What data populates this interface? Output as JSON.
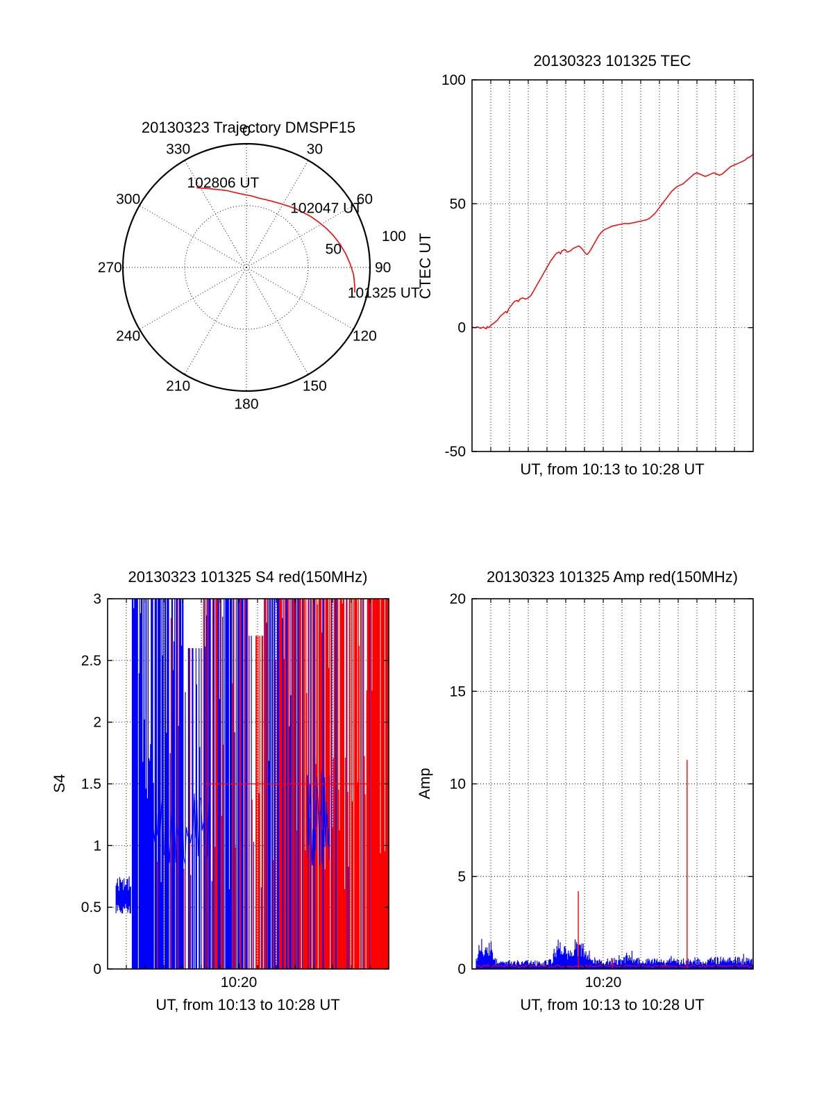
{
  "figure": {
    "background": "#ffffff",
    "colors": {
      "red": "#ff0000",
      "blue": "#0000ff",
      "axis": "#000000"
    }
  },
  "chart_data": [
    {
      "id": "trajectory",
      "type": "polar-trajectory",
      "title": "20130323 Trajectory DMSPF15",
      "max_radius": 100,
      "azimuth_ticks": [
        0,
        30,
        60,
        90,
        120,
        150,
        180,
        210,
        240,
        270,
        300,
        330
      ],
      "azimuth_tick_labels": [
        "0",
        "30",
        "60",
        "90",
        "120",
        "150",
        "180",
        "210",
        "240",
        "270",
        "300",
        "330"
      ],
      "radial_ticks": [
        {
          "value": 50,
          "label": "50"
        },
        {
          "value": 100,
          "label": "100"
        }
      ],
      "radial_label_azimuth_deg": 78,
      "grid": true,
      "trajectory_color": "#ff0000",
      "trajectory_points_az_r": [
        [
          328,
          76
        ],
        [
          334,
          71
        ],
        [
          340,
          67
        ],
        [
          346,
          64
        ],
        [
          352,
          61
        ],
        [
          358,
          59
        ],
        [
          4,
          58
        ],
        [
          10,
          57
        ],
        [
          16,
          57
        ],
        [
          22,
          57.5
        ],
        [
          28,
          58.5
        ],
        [
          34,
          60
        ],
        [
          40,
          62
        ],
        [
          46,
          64
        ],
        [
          52,
          66.5
        ],
        [
          58,
          69
        ],
        [
          64,
          72
        ],
        [
          70,
          75
        ],
        [
          76,
          78
        ],
        [
          82,
          81
        ],
        [
          88,
          84
        ],
        [
          94,
          87
        ],
        [
          100,
          89
        ],
        [
          103,
          90
        ]
      ],
      "annotations": [
        {
          "label": "102806 UT",
          "az": 344.6,
          "r": 71
        },
        {
          "label": "102047 UT",
          "az": 53.4,
          "r": 80.6
        },
        {
          "label": "101325 UT",
          "az": 100.5,
          "r": 113
        }
      ]
    },
    {
      "id": "tec",
      "type": "line",
      "title": "20130323 101325 TEC",
      "ylabel": "CTEC UT",
      "xlabel": "UT, from 10:13 to 10:28 UT",
      "x_range_ut": [
        "10:13",
        "10:28"
      ],
      "x_minutes": 15,
      "ylim": [
        -50,
        100
      ],
      "yticks": [
        {
          "value": -50,
          "label": "-50"
        },
        {
          "value": 0,
          "label": "0"
        },
        {
          "value": 50,
          "label": "50"
        },
        {
          "value": 100,
          "label": "100"
        }
      ],
      "xticks": [],
      "grid_y_values": [
        0,
        50
      ],
      "grid": true,
      "line_color": "#ff0000",
      "points_t_tec": [
        [
          0,
          0.2
        ],
        [
          0.01,
          0
        ],
        [
          0.02,
          0.3
        ],
        [
          0.03,
          -0.3
        ],
        [
          0.04,
          0.2
        ],
        [
          0.05,
          -0.5
        ],
        [
          0.055,
          0.4
        ],
        [
          0.06,
          0
        ],
        [
          0.07,
          1.2
        ],
        [
          0.08,
          2
        ],
        [
          0.09,
          3
        ],
        [
          0.1,
          4.5
        ],
        [
          0.11,
          5.5
        ],
        [
          0.12,
          6.5
        ],
        [
          0.125,
          6
        ],
        [
          0.13,
          7.5
        ],
        [
          0.14,
          9
        ],
        [
          0.15,
          10.5
        ],
        [
          0.16,
          11
        ],
        [
          0.165,
          10.5
        ],
        [
          0.17,
          11.5
        ],
        [
          0.18,
          12
        ],
        [
          0.19,
          11.5
        ],
        [
          0.2,
          12
        ],
        [
          0.21,
          13
        ],
        [
          0.22,
          15
        ],
        [
          0.23,
          17
        ],
        [
          0.24,
          19
        ],
        [
          0.25,
          21
        ],
        [
          0.26,
          23
        ],
        [
          0.27,
          25
        ],
        [
          0.28,
          27
        ],
        [
          0.29,
          28.5
        ],
        [
          0.3,
          30
        ],
        [
          0.31,
          30.5
        ],
        [
          0.315,
          29.8
        ],
        [
          0.32,
          31
        ],
        [
          0.33,
          31.5
        ],
        [
          0.34,
          30.5
        ],
        [
          0.35,
          31
        ],
        [
          0.36,
          32
        ],
        [
          0.37,
          32.5
        ],
        [
          0.38,
          33
        ],
        [
          0.39,
          32
        ],
        [
          0.4,
          30.5
        ],
        [
          0.405,
          29.8
        ],
        [
          0.41,
          29.5
        ],
        [
          0.42,
          31
        ],
        [
          0.43,
          33
        ],
        [
          0.44,
          35
        ],
        [
          0.45,
          37
        ],
        [
          0.46,
          38.5
        ],
        [
          0.47,
          39.5
        ],
        [
          0.48,
          40
        ],
        [
          0.49,
          40.5
        ],
        [
          0.5,
          41
        ],
        [
          0.52,
          41.5
        ],
        [
          0.54,
          42
        ],
        [
          0.56,
          42
        ],
        [
          0.58,
          42.5
        ],
        [
          0.6,
          43
        ],
        [
          0.62,
          43.5
        ],
        [
          0.63,
          44
        ],
        [
          0.64,
          45
        ],
        [
          0.65,
          46
        ],
        [
          0.66,
          47.5
        ],
        [
          0.67,
          49
        ],
        [
          0.68,
          50.5
        ],
        [
          0.69,
          52
        ],
        [
          0.7,
          53.5
        ],
        [
          0.71,
          55
        ],
        [
          0.72,
          56
        ],
        [
          0.73,
          57
        ],
        [
          0.74,
          57.5
        ],
        [
          0.75,
          58
        ],
        [
          0.76,
          59
        ],
        [
          0.77,
          60
        ],
        [
          0.78,
          61
        ],
        [
          0.79,
          62
        ],
        [
          0.8,
          62.5
        ],
        [
          0.81,
          62
        ],
        [
          0.82,
          61.5
        ],
        [
          0.83,
          61
        ],
        [
          0.84,
          61.5
        ],
        [
          0.85,
          62
        ],
        [
          0.86,
          62.5
        ],
        [
          0.87,
          62
        ],
        [
          0.88,
          61.5
        ],
        [
          0.89,
          62
        ],
        [
          0.9,
          63
        ],
        [
          0.91,
          64
        ],
        [
          0.92,
          65
        ],
        [
          0.93,
          65.5
        ],
        [
          0.94,
          66
        ],
        [
          0.95,
          66.5
        ],
        [
          0.96,
          67
        ],
        [
          0.97,
          67.5
        ],
        [
          0.98,
          68.5
        ],
        [
          0.99,
          69
        ],
        [
          1,
          70
        ]
      ]
    },
    {
      "id": "s4",
      "type": "scintillation",
      "title": "20130323 101325 S4 red(150MHz)",
      "ylabel": "S4",
      "xlabel": "UT, from 10:13 to 10:28 UT",
      "x_range_ut": [
        "10:13",
        "10:28"
      ],
      "x_minutes": 15,
      "ylim": [
        0,
        3
      ],
      "yticks": [
        {
          "value": 0,
          "label": "0"
        },
        {
          "value": 0.5,
          "label": "0.5"
        },
        {
          "value": 1,
          "label": "1"
        },
        {
          "value": 1.5,
          "label": "1.5"
        },
        {
          "value": 2,
          "label": "2"
        },
        {
          "value": 2.5,
          "label": "2.5"
        },
        {
          "value": 3,
          "label": "3"
        }
      ],
      "xticks": [
        {
          "t": 0.4667,
          "label": "10:20"
        }
      ],
      "grid_y_values": [
        0.5,
        1,
        1.5,
        2,
        2.5
      ],
      "grid": true,
      "colors": {
        "series1": "#0000ff",
        "series2": "#ff0000"
      },
      "note": "S4 values saturate at 3; dense vertical blue/red strokes regenerated pseudo-randomly",
      "intro_trace": {
        "t_range": [
          0.03,
          0.082
        ],
        "y_band": [
          0.45,
          0.75
        ]
      },
      "dense_region": {
        "t_range": [
          0.085,
          1.0
        ],
        "seed": 20130323,
        "line_count": 340,
        "full_height_prob": 0.55,
        "red_ramp": {
          "start_t": 0.13,
          "slope": 1.2,
          "min": 0.03,
          "max": 0.85
        },
        "gaps": [
          {
            "t_range": [
              0.27,
              0.34
            ],
            "density": 0.5,
            "max_value": 2.6
          },
          {
            "t_range": [
              0.5,
              0.555
            ],
            "density": 0.55,
            "max_value": 2.7
          }
        ]
      },
      "blue_traces": [
        {
          "t_range": [
            0.13,
            0.36
          ],
          "y_band": [
            0.85,
            1.45
          ]
        },
        {
          "t_range": [
            0.71,
            0.79
          ],
          "y_band": [
            0.8,
            1.6
          ]
        }
      ],
      "red_hline": {
        "y": 1.5,
        "t_range": [
          0.35,
          1.0
        ]
      }
    },
    {
      "id": "amp",
      "type": "amplitude",
      "title": "20130323 101325 Amp red(150MHz)",
      "ylabel": "Amp",
      "xlabel": "UT, from 10:13 to 10:28 UT",
      "x_range_ut": [
        "10:13",
        "10:28"
      ],
      "x_minutes": 15,
      "ylim": [
        0,
        20
      ],
      "yticks": [
        {
          "value": 0,
          "label": "0"
        },
        {
          "value": 5,
          "label": "5"
        },
        {
          "value": 10,
          "label": "10"
        },
        {
          "value": 15,
          "label": "15"
        },
        {
          "value": 20,
          "label": "20"
        }
      ],
      "xticks": [
        {
          "t": 0.4667,
          "label": "10:20"
        }
      ],
      "grid_y_values": [
        5,
        10,
        15
      ],
      "grid": true,
      "colors": {
        "signal": "#0000ff",
        "reference": "#ff0000"
      },
      "noise_seed": 101325,
      "blue_envelope_t_amp": [
        [
          0.015,
          0.6
        ],
        [
          0.025,
          1.5
        ],
        [
          0.04,
          1.8
        ],
        [
          0.055,
          1.6
        ],
        [
          0.07,
          1.5
        ],
        [
          0.075,
          0.8
        ],
        [
          0.09,
          0.5
        ],
        [
          0.12,
          0.45
        ],
        [
          0.15,
          0.5
        ],
        [
          0.18,
          0.45
        ],
        [
          0.21,
          0.5
        ],
        [
          0.24,
          0.45
        ],
        [
          0.27,
          0.5
        ],
        [
          0.29,
          0.8
        ],
        [
          0.305,
          1.6
        ],
        [
          0.32,
          2.0
        ],
        [
          0.335,
          1.3
        ],
        [
          0.35,
          1.0
        ],
        [
          0.365,
          1.6
        ],
        [
          0.38,
          1.9
        ],
        [
          0.395,
          1.9
        ],
        [
          0.41,
          1.2
        ],
        [
          0.425,
          0.8
        ],
        [
          0.45,
          0.6
        ],
        [
          0.48,
          0.55
        ],
        [
          0.5,
          0.7
        ],
        [
          0.53,
          0.6
        ],
        [
          0.55,
          0.9
        ],
        [
          0.58,
          0.7
        ],
        [
          0.61,
          0.55
        ],
        [
          0.64,
          0.6
        ],
        [
          0.67,
          0.55
        ],
        [
          0.7,
          0.6
        ],
        [
          0.73,
          0.65
        ],
        [
          0.76,
          0.6
        ],
        [
          0.79,
          0.65
        ],
        [
          0.82,
          0.6
        ],
        [
          0.85,
          0.65
        ],
        [
          0.88,
          0.7
        ],
        [
          0.91,
          0.6
        ],
        [
          0.94,
          0.7
        ],
        [
          0.97,
          0.6
        ],
        [
          1.0,
          0.65
        ]
      ],
      "red_baseline_amp": 0.15,
      "red_spikes": [
        {
          "t": 0.378,
          "amp": 4.2
        },
        {
          "t": 0.5,
          "amp": 0.55
        },
        {
          "t": 0.765,
          "amp": 11.3
        }
      ]
    }
  ]
}
